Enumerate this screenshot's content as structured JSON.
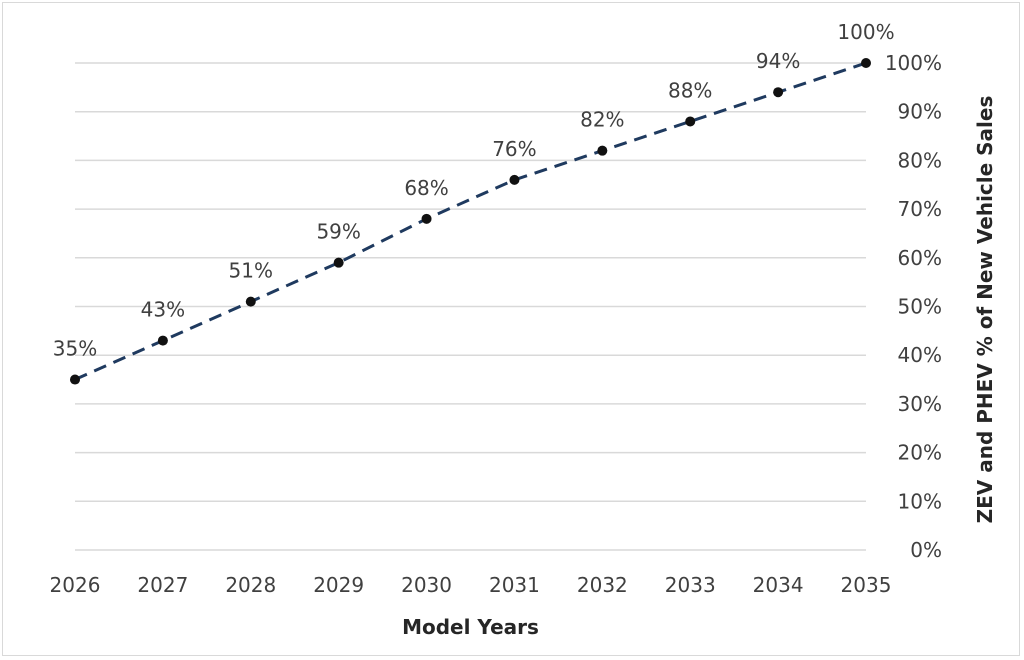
{
  "chart_data": {
    "type": "line",
    "title": "",
    "xlabel": "Model Years",
    "ylabel": "ZEV and PHEV % of New Vehicle Sales",
    "x": [
      2026,
      2027,
      2028,
      2029,
      2030,
      2031,
      2032,
      2033,
      2034,
      2035
    ],
    "series": [
      {
        "values": [
          35,
          43,
          51,
          59,
          68,
          76,
          82,
          88,
          94,
          100
        ]
      }
    ],
    "data_labels": [
      "35%",
      "43%",
      "51%",
      "59%",
      "68%",
      "76%",
      "82%",
      "88%",
      "94%",
      "100%"
    ],
    "ylim": [
      0,
      100
    ],
    "yticks": [
      0,
      10,
      20,
      30,
      40,
      50,
      60,
      70,
      80,
      90,
      100
    ],
    "ytick_labels": [
      "0%",
      "10%",
      "20%",
      "30%",
      "40%",
      "50%",
      "60%",
      "70%",
      "80%",
      "90%",
      "100%"
    ],
    "xtick_labels": [
      "2026",
      "2027",
      "2028",
      "2029",
      "2030",
      "2031",
      "2032",
      "2033",
      "2034",
      "2035"
    ],
    "y_axis_side": "right",
    "grid": true,
    "line_style": "dashed",
    "colors": {
      "line": "#1f3a5f",
      "marker": "#111111",
      "grid": "#d9d9d9"
    }
  }
}
